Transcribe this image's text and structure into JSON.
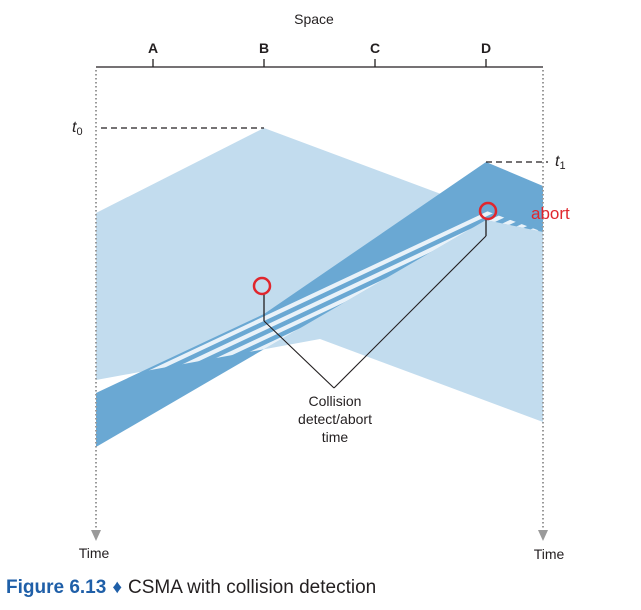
{
  "header": {
    "space_label": "Space"
  },
  "nodes": [
    "A",
    "B",
    "C",
    "D"
  ],
  "time_labels": {
    "t0_base": "t",
    "t0_sub": "0",
    "t1_base": "t",
    "t1_sub": "1",
    "left": "Time",
    "right": "Time"
  },
  "annotations": {
    "abort": "abort",
    "collision_lines": [
      "Collision",
      "detect/abort",
      "time"
    ]
  },
  "colors": {
    "light_signal": "#c2dcee",
    "dark_signal": "#6aa8d3",
    "stripe": "#ffffff",
    "highlight": "#e0262d",
    "line": "#231f20",
    "time_axis": "#9a9a9a",
    "caption_accent": "#1f5fa8"
  },
  "caption": {
    "label": "Figure 6.13",
    "separator": "♦",
    "text": "CSMA with collision detection"
  }
}
